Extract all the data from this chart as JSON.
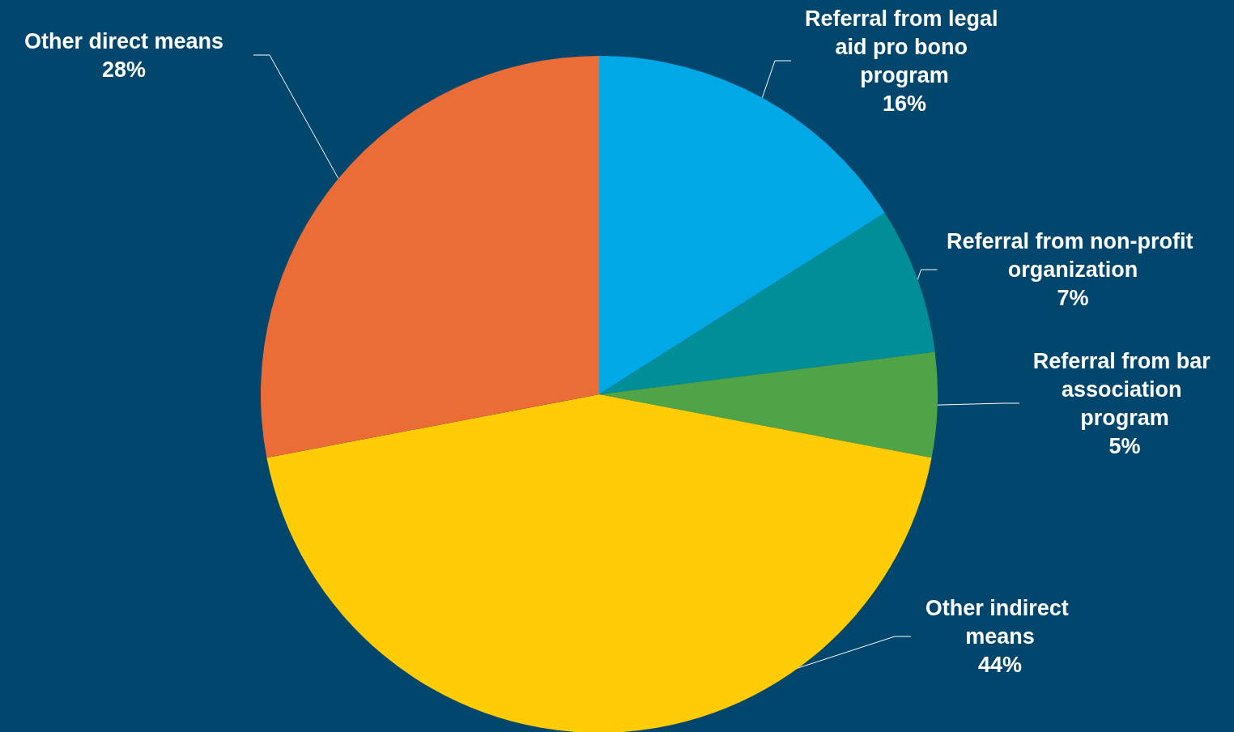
{
  "chart_data": {
    "type": "pie",
    "categories": [
      "Referral from legal aid pro bono program",
      "Referral from non-profit organization",
      "Referral from bar association program",
      "Other indirect means",
      "Other direct means"
    ],
    "values": [
      16,
      7,
      5,
      44,
      28
    ],
    "colors": [
      "#00a8e6",
      "#008f98",
      "#4fa447",
      "#ffcc06",
      "#ec6c37"
    ],
    "value_labels": [
      "16%",
      "7%",
      "5%",
      "44%",
      "28%"
    ],
    "legend": false
  }
}
